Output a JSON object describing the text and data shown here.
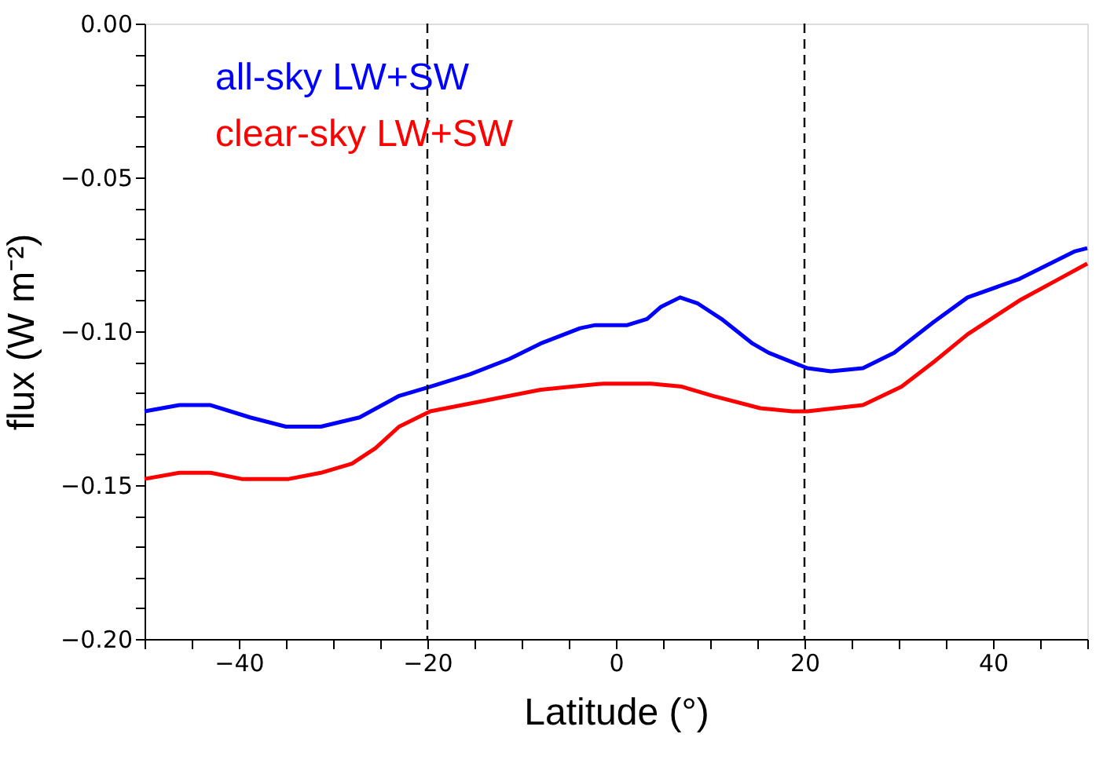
{
  "chart_data": {
    "type": "line",
    "xlabel": "Latitude (°)",
    "ylabel": "flux (W m⁻²)",
    "xlim": [
      -50,
      50
    ],
    "ylim": [
      -0.2,
      0.0
    ],
    "xticks": [
      {
        "value": -50,
        "label": null
      },
      {
        "value": -45,
        "label": null
      },
      {
        "value": -40,
        "label": "−40"
      },
      {
        "value": -35,
        "label": null
      },
      {
        "value": -30,
        "label": null
      },
      {
        "value": -25,
        "label": null
      },
      {
        "value": -20,
        "label": "−20"
      },
      {
        "value": -15,
        "label": null
      },
      {
        "value": -10,
        "label": null
      },
      {
        "value": -5,
        "label": null
      },
      {
        "value": 0,
        "label": "0"
      },
      {
        "value": 5,
        "label": null
      },
      {
        "value": 10,
        "label": null
      },
      {
        "value": 15,
        "label": null
      },
      {
        "value": 20,
        "label": "20"
      },
      {
        "value": 25,
        "label": null
      },
      {
        "value": 30,
        "label": null
      },
      {
        "value": 35,
        "label": null
      },
      {
        "value": 40,
        "label": "40"
      },
      {
        "value": 45,
        "label": null
      },
      {
        "value": 50,
        "label": null
      }
    ],
    "yticks": [
      {
        "value": -0.2,
        "label": "−0.20"
      },
      {
        "value": -0.19,
        "label": null
      },
      {
        "value": -0.18,
        "label": null
      },
      {
        "value": -0.17,
        "label": null
      },
      {
        "value": -0.16,
        "label": null
      },
      {
        "value": -0.15,
        "label": "−0.15"
      },
      {
        "value": -0.14,
        "label": null
      },
      {
        "value": -0.13,
        "label": null
      },
      {
        "value": -0.12,
        "label": null
      },
      {
        "value": -0.11,
        "label": null
      },
      {
        "value": -0.1,
        "label": "−0.10"
      },
      {
        "value": -0.09,
        "label": null
      },
      {
        "value": -0.08,
        "label": null
      },
      {
        "value": -0.07,
        "label": null
      },
      {
        "value": -0.06,
        "label": null
      },
      {
        "value": -0.05,
        "label": "−0.05"
      },
      {
        "value": -0.04,
        "label": null
      },
      {
        "value": -0.03,
        "label": null
      },
      {
        "value": -0.02,
        "label": null
      },
      {
        "value": -0.01,
        "label": null
      },
      {
        "value": 0.0,
        "label": "0.00"
      }
    ],
    "grid": false,
    "legend": "top left",
    "marker": "none",
    "line_style": "solid",
    "ref_lines": [
      {
        "axis": "x",
        "value": -20,
        "color": "#000000",
        "line_style": "dashed"
      },
      {
        "axis": "x",
        "value": 20,
        "color": "#000000",
        "line_style": "dashed"
      }
    ],
    "series": [
      {
        "name": "all-sky LW+SW",
        "color": "#0000ff",
        "x": [
          -50,
          -46.3,
          -43,
          -38.8,
          -35,
          -31.3,
          -27.2,
          -23,
          -19.7,
          -15.5,
          -11.3,
          -8,
          -3.8,
          -2.2,
          1.2,
          3.3,
          4.8,
          6.8,
          8.7,
          11.2,
          14.5,
          16.2,
          20.3,
          22.8,
          26.2,
          29.5,
          33.7,
          37.3,
          42.8,
          48.7,
          50
        ],
        "values": [
          -0.126,
          -0.124,
          -0.124,
          -0.128,
          -0.131,
          -0.131,
          -0.128,
          -0.121,
          -0.118,
          -0.114,
          -0.109,
          -0.104,
          -0.099,
          -0.098,
          -0.098,
          -0.096,
          -0.092,
          -0.089,
          -0.091,
          -0.096,
          -0.104,
          -0.107,
          -0.112,
          -0.113,
          -0.112,
          -0.107,
          -0.097,
          -0.089,
          -0.083,
          -0.074,
          -0.073
        ]
      },
      {
        "name": "clear-sky LW+SW",
        "color": "#ff0000",
        "x": [
          -50,
          -46.3,
          -43,
          -39.7,
          -34.7,
          -31.3,
          -28,
          -25.5,
          -23,
          -19.7,
          -16.3,
          -13,
          -8,
          -4.7,
          -1.3,
          3.7,
          7,
          10.3,
          15.3,
          18.7,
          20.3,
          26.2,
          30.3,
          33.7,
          37.3,
          42.8,
          47,
          50
        ],
        "values": [
          -0.148,
          -0.146,
          -0.146,
          -0.148,
          -0.148,
          -0.146,
          -0.143,
          -0.138,
          -0.131,
          -0.126,
          -0.124,
          -0.122,
          -0.119,
          -0.118,
          -0.117,
          -0.117,
          -0.118,
          -0.121,
          -0.125,
          -0.126,
          -0.126,
          -0.124,
          -0.118,
          -0.11,
          -0.101,
          -0.09,
          -0.083,
          -0.078
        ]
      }
    ]
  }
}
